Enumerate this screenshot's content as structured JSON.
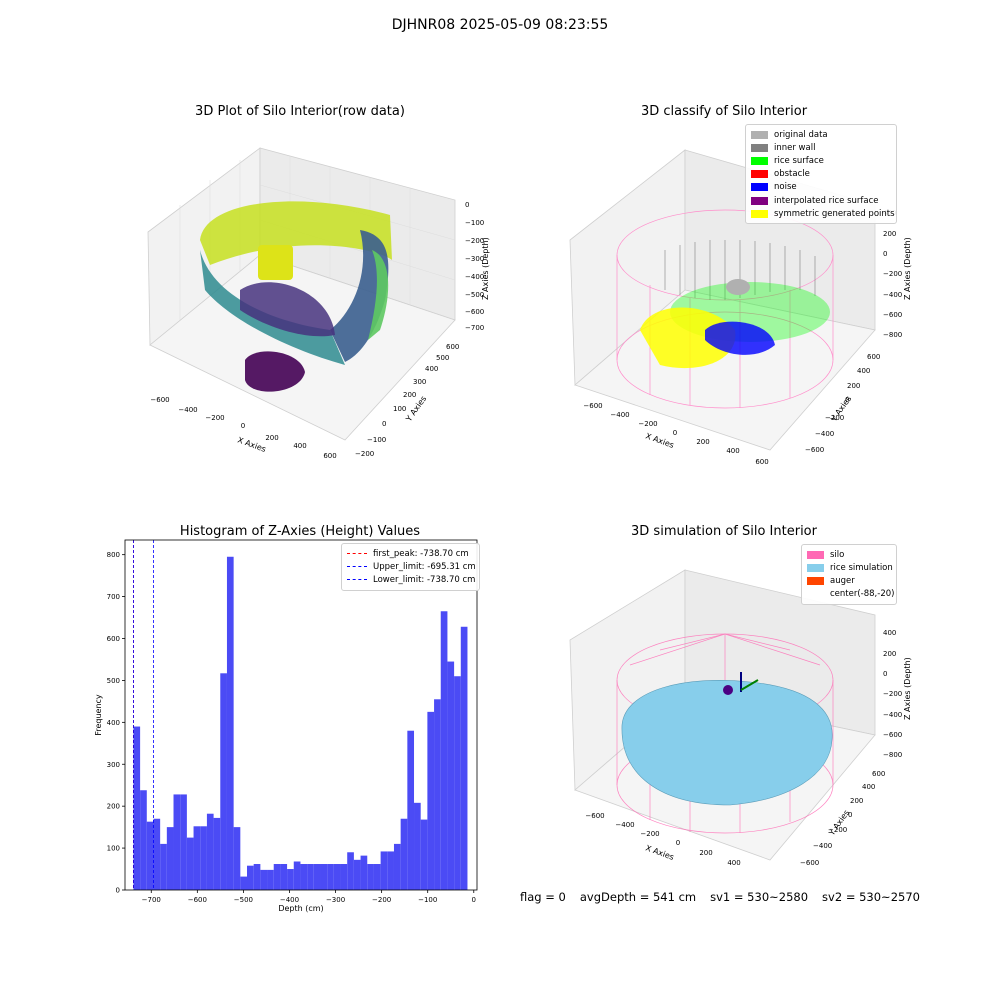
{
  "figure": {
    "title": "DJHNR08 2025-05-09 08:23:55",
    "footer": {
      "flag": "flag = 0",
      "avg_depth": "avgDepth = 541 cm",
      "sv1": "sv1 = 530~2580",
      "sv2": "sv2 = 530~2570"
    }
  },
  "chart_data": [
    {
      "type": "scatter",
      "title": "3D Plot of Silo Interior(row data)",
      "xlabel": "X Axies",
      "ylabel": "Y Axies",
      "zlabel": "Z Axies (Depth)",
      "x_ticks": [
        "−600",
        "−400",
        "−200",
        "0",
        "200",
        "400",
        "600"
      ],
      "y_ticks": [
        "−200",
        "−100",
        "0",
        "100",
        "200",
        "300",
        "400",
        "500",
        "600"
      ],
      "z_ticks": [
        "0",
        "−100",
        "−200",
        "−300",
        "−400",
        "−500",
        "−600",
        "−700"
      ],
      "colormap": "viridis"
    },
    {
      "type": "scatter",
      "title": "3D classify of Silo Interior",
      "xlabel": "X Axies",
      "ylabel": "Y Axies",
      "zlabel": "Z Axies (Depth)",
      "x_ticks": [
        "−600",
        "−400",
        "−200",
        "0",
        "200",
        "400",
        "600"
      ],
      "y_ticks": [
        "−600",
        "−400",
        "−200",
        "0",
        "200",
        "400",
        "600"
      ],
      "z_ticks": [
        "400",
        "200",
        "0",
        "−200",
        "−400",
        "−600",
        "−800"
      ],
      "legend": [
        {
          "label": "original data",
          "color": "#b0b0b0"
        },
        {
          "label": "inner wall",
          "color": "#808080"
        },
        {
          "label": "rice surface",
          "color": "#00ff00"
        },
        {
          "label": "obstacle",
          "color": "#ff0000"
        },
        {
          "label": "noise",
          "color": "#0000ff"
        },
        {
          "label": "interpolated rice surface",
          "color": "#800080"
        },
        {
          "label": "symmetric generated points",
          "color": "#ffff00"
        }
      ]
    },
    {
      "type": "bar",
      "title": "Histogram of Z-Axies (Height) Values",
      "xlabel": "Depth (cm)",
      "ylabel": "Frequency",
      "bar_color": "#4b4bf5",
      "x_range": [
        -757,
        7
      ],
      "ylim": [
        0,
        835
      ],
      "x_ticks": [
        -700,
        -600,
        -500,
        -400,
        -300,
        -200,
        -100,
        0
      ],
      "x_tick_labels": [
        "−700",
        "−600",
        "−500",
        "−400",
        "−300",
        "−200",
        "−100",
        "0"
      ],
      "y_ticks": [
        0,
        100,
        200,
        300,
        400,
        500,
        600,
        700,
        800
      ],
      "bin_start": -738.7,
      "bin_width": 14.5,
      "values": [
        390,
        238,
        163,
        170,
        110,
        150,
        228,
        228,
        125,
        152,
        152,
        182,
        172,
        517,
        795,
        150,
        32,
        58,
        62,
        48,
        48,
        62,
        62,
        50,
        68,
        62,
        62,
        62,
        62,
        62,
        62,
        62,
        90,
        72,
        82,
        62,
        62,
        92,
        92,
        110,
        170,
        380,
        208,
        168,
        425,
        455,
        665,
        545,
        510,
        628
      ],
      "lines": [
        {
          "label": "first_peak: -738.70 cm",
          "value": -738.7,
          "color": "#ff0000"
        },
        {
          "label": "Upper_limit: -695.31 cm",
          "value": -695.31,
          "color": "#0000ff"
        },
        {
          "label": "Lower_limit: -738.70 cm",
          "value": -738.7,
          "color": "#0000ff"
        }
      ]
    },
    {
      "type": "scatter",
      "title": "3D simulation of Silo Interior",
      "xlabel": "X Axies",
      "ylabel": "Y Axies",
      "zlabel": "Z Axies (Depth)",
      "x_ticks": [
        "−600",
        "−400",
        "−200",
        "0",
        "200",
        "400"
      ],
      "y_ticks": [
        "−600",
        "−400",
        "−200",
        "0",
        "200",
        "400",
        "600"
      ],
      "z_ticks": [
        "400",
        "200",
        "0",
        "−200",
        "−400",
        "−600",
        "−800"
      ],
      "legend": [
        {
          "label": "silo",
          "color": "#ff69b4"
        },
        {
          "label": "rice simulation",
          "color": "#87ceeb"
        },
        {
          "label": "auger",
          "color": "#ff4500"
        },
        {
          "label": "center(-88,-20)",
          "color": "transparent"
        }
      ]
    }
  ]
}
